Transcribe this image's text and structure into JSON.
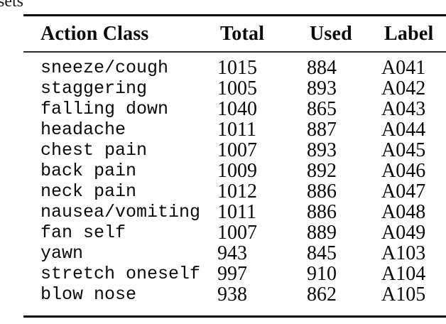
{
  "page": {
    "background": "#ffffff",
    "text_color": "#0a0a0a",
    "cropped_text": "sets"
  },
  "table": {
    "columns": [
      {
        "key": "action",
        "label": "Action Class"
      },
      {
        "key": "total",
        "label": "Total"
      },
      {
        "key": "used",
        "label": "Used"
      },
      {
        "key": "label",
        "label": "Label"
      }
    ],
    "rows": [
      {
        "action": "sneeze/cough",
        "total": "1015",
        "used": "884",
        "label": "A041"
      },
      {
        "action": "staggering",
        "total": "1005",
        "used": "893",
        "label": "A042"
      },
      {
        "action": "falling down",
        "total": "1040",
        "used": "865",
        "label": "A043"
      },
      {
        "action": "headache",
        "total": "1011",
        "used": "887",
        "label": "A044"
      },
      {
        "action": "chest pain",
        "total": "1007",
        "used": "893",
        "label": "A045"
      },
      {
        "action": "back pain",
        "total": "1009",
        "used": "892",
        "label": "A046"
      },
      {
        "action": "neck pain",
        "total": "1012",
        "used": "886",
        "label": "A047"
      },
      {
        "action": "nausea/vomiting",
        "total": "1011",
        "used": "886",
        "label": "A048"
      },
      {
        "action": "fan self",
        "total": "1007",
        "used": "889",
        "label": "A049"
      },
      {
        "action": "yawn",
        "total": "943",
        "used": "845",
        "label": "A103"
      },
      {
        "action": "stretch oneself",
        "total": "997",
        "used": "910",
        "label": "A104"
      },
      {
        "action": "blow nose",
        "total": "938",
        "used": "862",
        "label": "A105"
      }
    ]
  }
}
